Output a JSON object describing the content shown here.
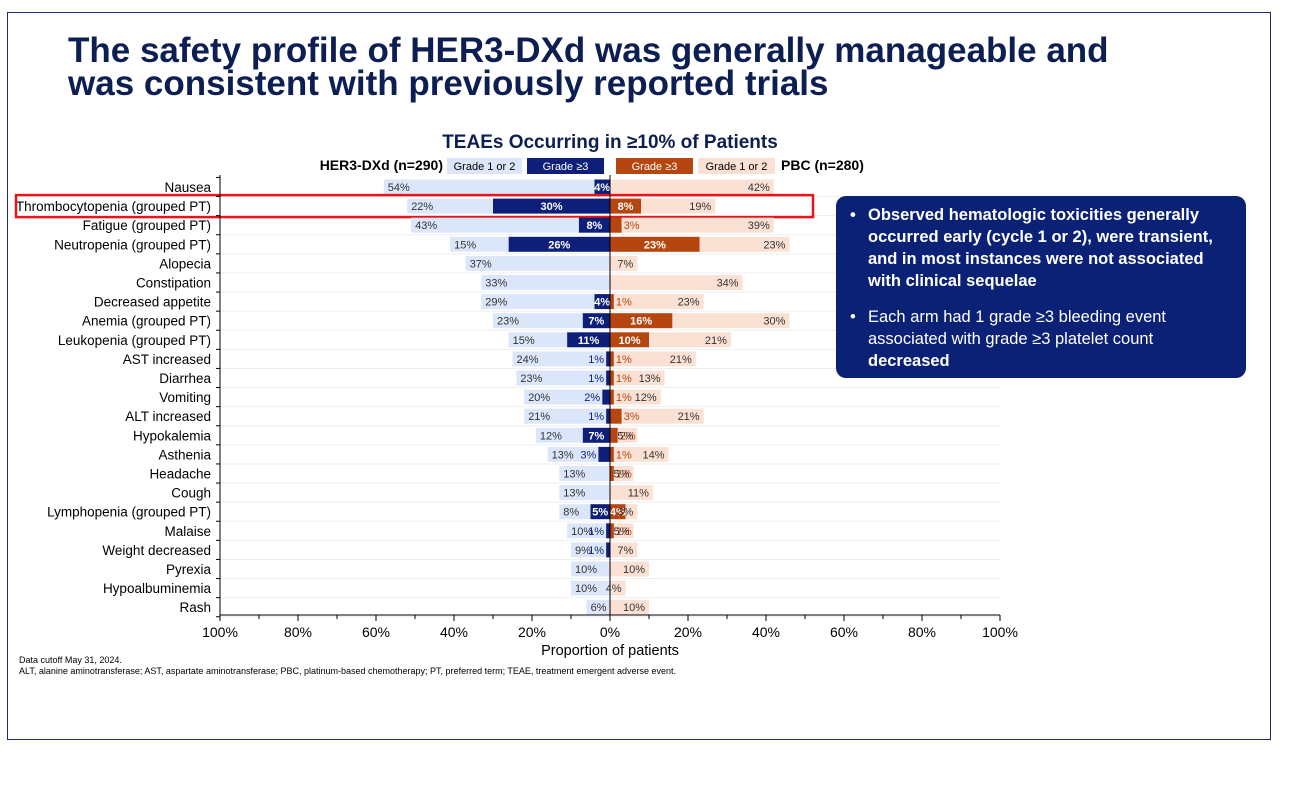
{
  "title": {
    "line1": "The safety profile of HER3-DXd was generally manageable and",
    "line2": "was consistent with previously reported trials"
  },
  "chart_data": {
    "type": "bar",
    "title": "TEAEs Occurring in ≥10% of Patients",
    "left_arm": "HER3-DXd (n=290)",
    "right_arm": "PBC (n=280)",
    "legend": [
      "Grade 1 or 2",
      "Grade ≥3",
      "Grade ≥3",
      "Grade 1 or 2"
    ],
    "xlabel": "Proportion of patients",
    "xlim": [
      -100,
      100
    ],
    "xticks": [
      -100,
      -80,
      -60,
      -40,
      -20,
      0,
      20,
      40,
      60,
      80,
      100
    ],
    "xtick_labels": [
      "100%",
      "80%",
      "60%",
      "40%",
      "20%",
      "0%",
      "20%",
      "40%",
      "60%",
      "80%",
      "100%"
    ],
    "colors": {
      "her3_g12": "#dce6fb",
      "her3_g3": "#0e1f7a",
      "pbc_g3": "#b5460f",
      "pbc_g12": "#fbe1d4",
      "highlight": "#e8141b"
    },
    "highlight_category": "Thrombocytopenia (grouped PT)",
    "categories": [
      "Nausea",
      "Thrombocytopenia (grouped PT)",
      "Fatigue (grouped PT)",
      "Neutropenia (grouped PT)",
      "Alopecia",
      "Constipation",
      "Decreased appetite",
      "Anemia (grouped PT)",
      "Leukopenia (grouped PT)",
      "AST increased",
      "Diarrhea",
      "Vomiting",
      "ALT increased",
      "Hypokalemia",
      "Asthenia",
      "Headache",
      "Cough",
      "Lymphopenia (grouped PT)",
      "Malaise",
      "Weight decreased",
      "Pyrexia",
      "Hypoalbuminemia",
      "Rash"
    ],
    "series": [
      {
        "name": "HER3-DXd Grade 1 or 2",
        "values": [
          54,
          22,
          43,
          15,
          37,
          33,
          29,
          23,
          15,
          24,
          23,
          20,
          21,
          12,
          13,
          13,
          13,
          8,
          10,
          9,
          10,
          10,
          6
        ]
      },
      {
        "name": "HER3-DXd Grade ≥3",
        "values": [
          4,
          30,
          8,
          26,
          0,
          0,
          4,
          7,
          11,
          1,
          1,
          2,
          1,
          7,
          3,
          0,
          0,
          5,
          1,
          1,
          0,
          0,
          0
        ]
      },
      {
        "name": "PBC Grade ≥3",
        "values": [
          0,
          8,
          3,
          23,
          0,
          0,
          1,
          16,
          10,
          1,
          1,
          1,
          3,
          2,
          1,
          1,
          0,
          4,
          1,
          0,
          0,
          0,
          0
        ]
      },
      {
        "name": "PBC Grade 1 or 2",
        "values": [
          42,
          19,
          39,
          23,
          7,
          34,
          23,
          30,
          21,
          21,
          13,
          12,
          21,
          5,
          14,
          5,
          11,
          3,
          5,
          7,
          10,
          4,
          10
        ]
      }
    ]
  },
  "callout": {
    "bullet_char": "•",
    "bullet1": "Observed hematologic toxicities generally occurred early (cycle 1 or 2), were transient, and in most instances were not associated with clinical sequelae",
    "bullet2_main": "Each arm had 1 grade ≥3 bleeding event associated with grade ≥3 platelet count",
    "bullet2_last": "decreased"
  },
  "footnotes": {
    "line1": "Data cutoff May 31, 2024.",
    "line2": "ALT, alanine aminotransferase; AST, aspartate aminotransferase; PBC, platinum-based chemotherapy; PT, preferred term; TEAE, treatment emergent adverse event."
  }
}
